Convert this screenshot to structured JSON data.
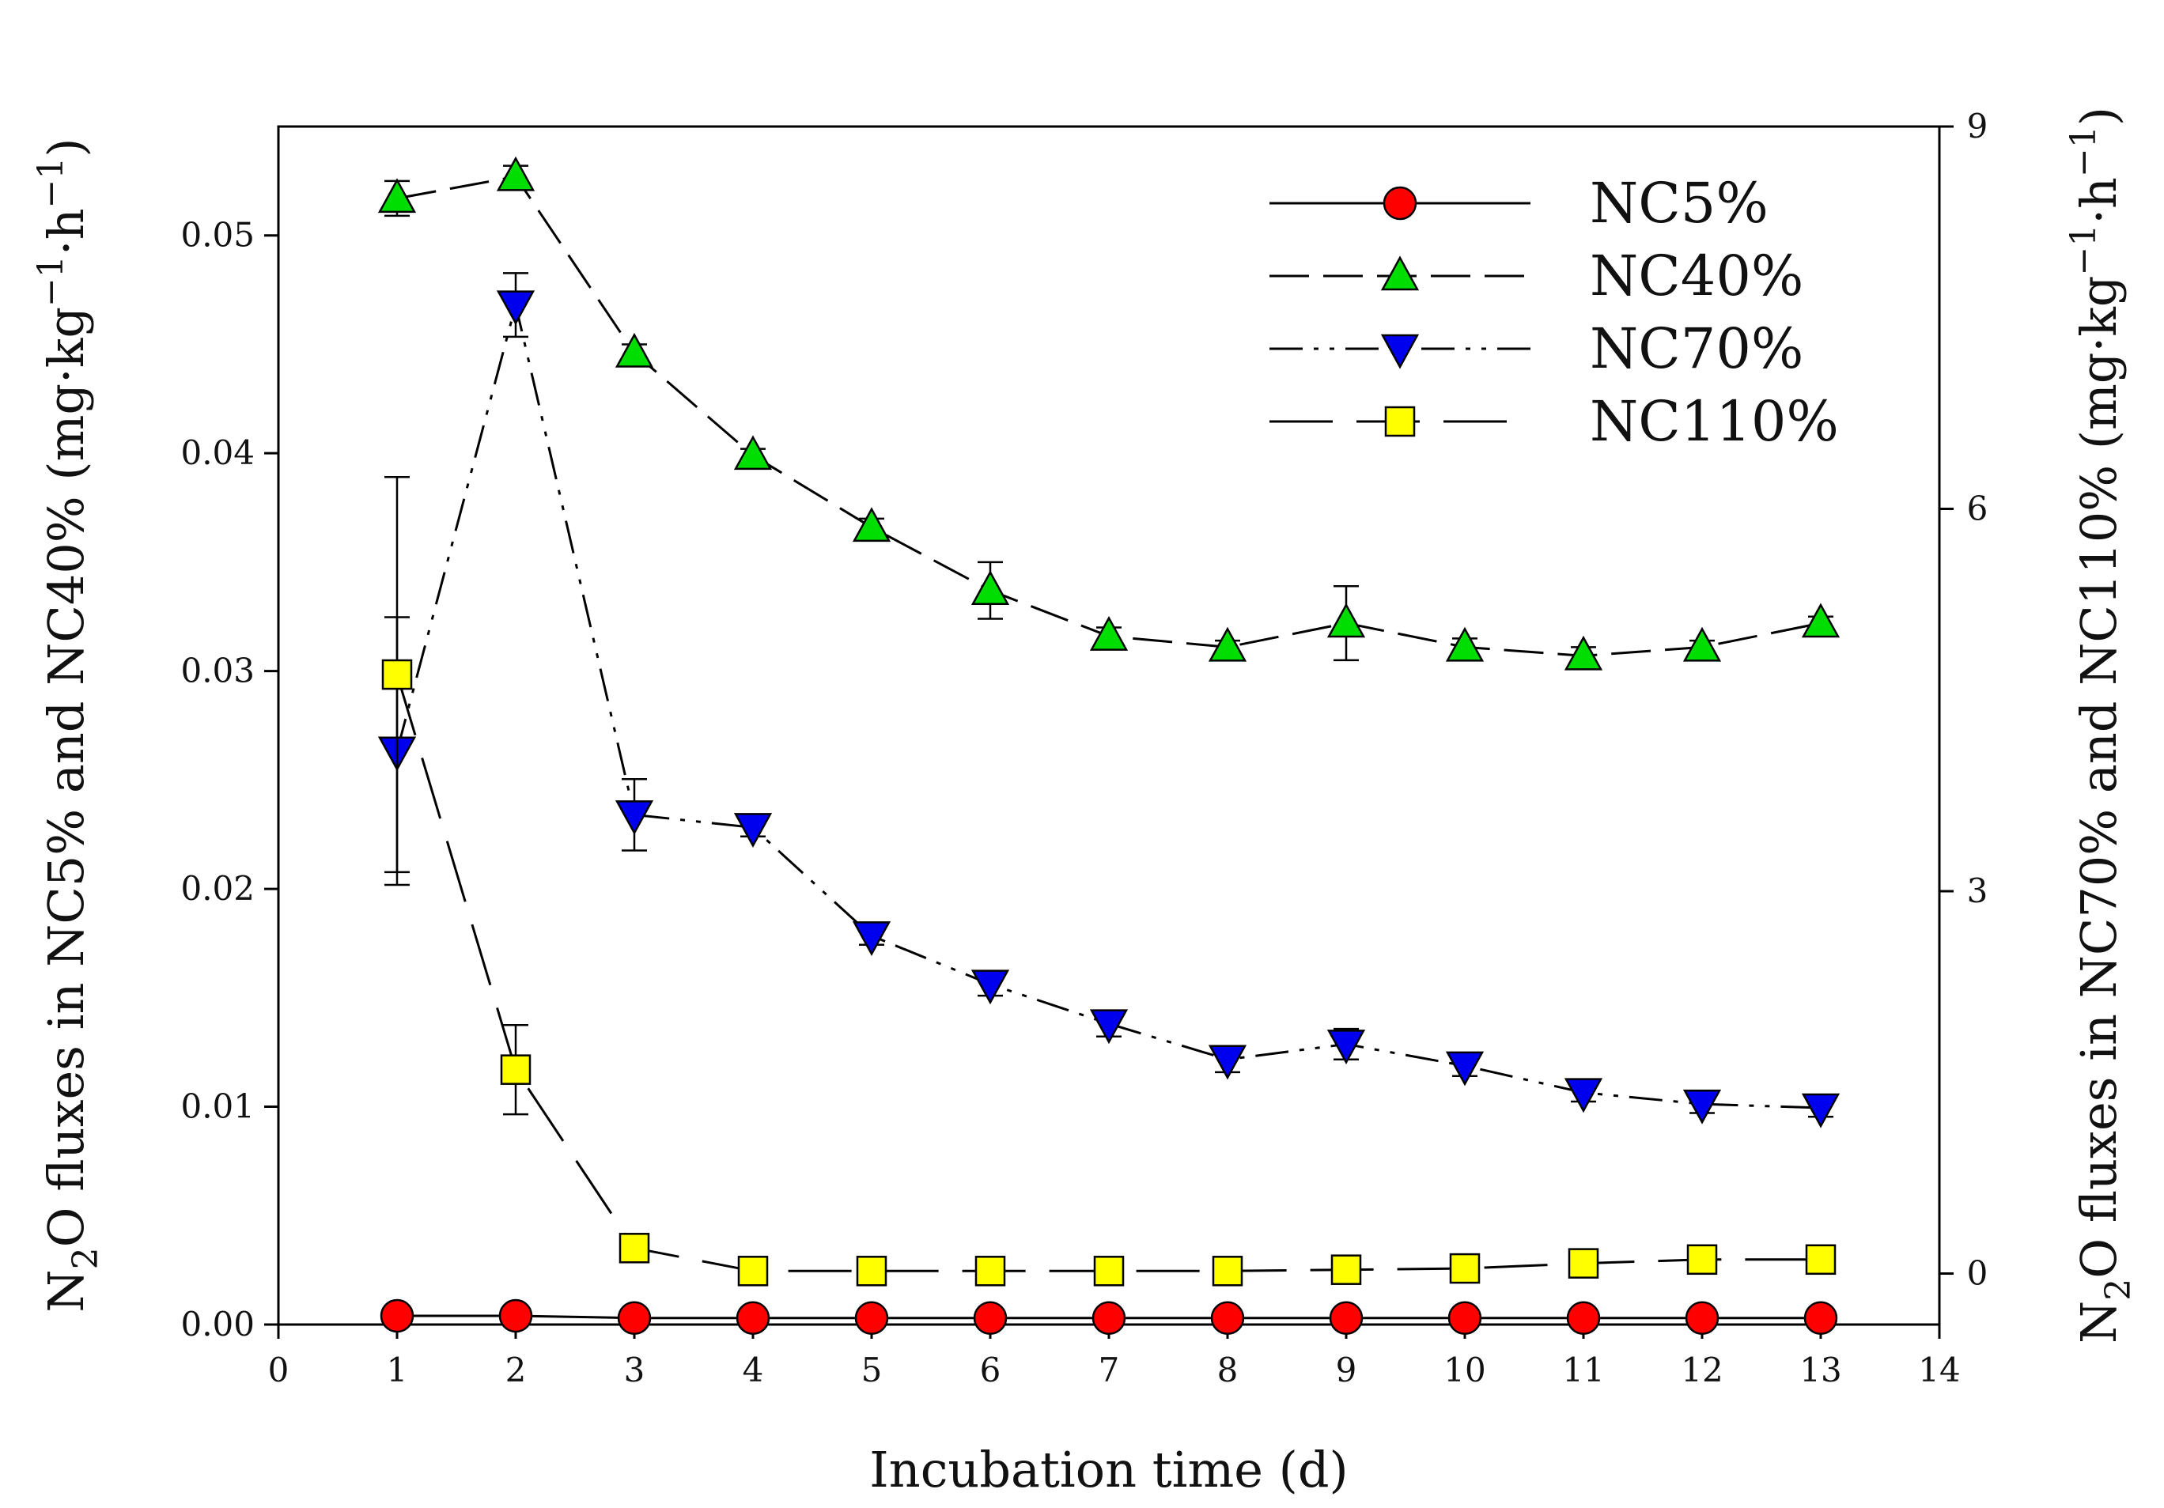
{
  "chart_data": {
    "type": "line",
    "xlabel": "Incubation time (d)",
    "ylabel_left": "N2O fluxes in NC5% and NC40% (mg·kg−1·h−1)",
    "ylabel_left_parts": {
      "pre": "N",
      "sub": "2",
      "mid": "O fluxes in NC5% and NC40% (mg·kg",
      "sup1": "−1",
      "dot": "·h",
      "sup2": "−1",
      "post": ")"
    },
    "ylabel_right": "N2O fluxes in  NC70% and NC110% (mg·kg−1·h−1)",
    "ylabel_right_parts": {
      "pre": "N",
      "sub": "2",
      "mid": "O fluxes in  NC70% and NC110% (mg·kg",
      "sup1": "−1",
      "dot": "·h",
      "sup2": "−1",
      "post": ")"
    },
    "xlim": [
      0,
      14
    ],
    "ylim_left": [
      0,
      0.055
    ],
    "ylim_right": [
      -0.4,
      9
    ],
    "xticks": [
      "0",
      "1",
      "2",
      "3",
      "4",
      "5",
      "6",
      "7",
      "8",
      "9",
      "10",
      "11",
      "12",
      "13",
      "14"
    ],
    "yticks_left": [
      "0.00",
      "0.01",
      "0.02",
      "0.03",
      "0.04",
      "0.05"
    ],
    "yticks_left_values": [
      0,
      0.01,
      0.02,
      0.03,
      0.04,
      0.05
    ],
    "yticks_right": [
      "0",
      "3",
      "6",
      "9"
    ],
    "yticks_right_values": [
      0,
      3,
      6,
      9
    ],
    "legend_position": "top-right",
    "x": [
      1,
      2,
      3,
      4,
      5,
      6,
      7,
      8,
      9,
      10,
      11,
      12,
      13
    ],
    "series": [
      {
        "name": "NC5%",
        "axis": "left",
        "marker": "circle",
        "color": "#ff0000",
        "dash": "solid",
        "values": [
          0.0004,
          0.0004,
          0.0003,
          0.0003,
          0.0003,
          0.0003,
          0.0003,
          0.0003,
          0.0003,
          0.0003,
          0.0003,
          0.0003,
          0.0003
        ],
        "errors": [
          0.0003,
          0.0003,
          0.0002,
          0.0002,
          0.0002,
          0.0002,
          0.0002,
          0.0002,
          0.0002,
          0.0002,
          0.0002,
          0.0002,
          0.0002
        ]
      },
      {
        "name": "NC40%",
        "axis": "left",
        "marker": "triangle-up",
        "color": "#00dd00",
        "dash": "dashed",
        "values": [
          0.0517,
          0.0527,
          0.0446,
          0.0399,
          0.0366,
          0.0337,
          0.0316,
          0.0311,
          0.0322,
          0.0311,
          0.0307,
          0.0311,
          0.0322
        ],
        "errors": [
          0.0008,
          0.0005,
          0.0004,
          0.0003,
          0.0004,
          0.0013,
          0.0004,
          0.0003,
          0.0017,
          0.0004,
          0.0004,
          0.0003,
          0.0003
        ]
      },
      {
        "name": "NC70%",
        "axis": "right",
        "marker": "triangle-down",
        "color": "#0000ee",
        "dash": "dash-dot-dot",
        "values": [
          4.1,
          7.6,
          3.6,
          3.5,
          2.65,
          2.27,
          1.96,
          1.68,
          1.8,
          1.63,
          1.42,
          1.33,
          1.3
        ],
        "errors": [
          1.05,
          0.25,
          0.28,
          0.07,
          0.07,
          0.09,
          0.1,
          0.1,
          0.12,
          0.08,
          0.07,
          0.07,
          0.07
        ]
      },
      {
        "name": "NC110%",
        "axis": "right",
        "marker": "square",
        "color": "#ffff00",
        "dash": "long-dash",
        "values": [
          4.7,
          1.6,
          0.2,
          0.02,
          0.02,
          0.02,
          0.02,
          0.02,
          0.03,
          0.04,
          0.08,
          0.11,
          0.11
        ],
        "errors": [
          1.55,
          0.35,
          0.03,
          0.02,
          0.03,
          0.02,
          0.02,
          0.02,
          0.02,
          0.02,
          0.02,
          0.02,
          0.02
        ]
      }
    ]
  }
}
